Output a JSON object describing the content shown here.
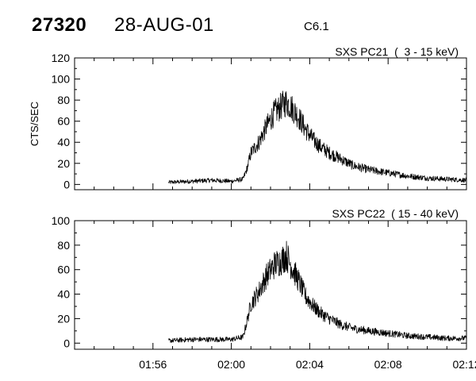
{
  "header": {
    "event_id": "27320",
    "date": "28-AUG-01",
    "flare_class": "C6.1"
  },
  "chart_data": [
    {
      "type": "line",
      "title": "SXS PC21  (  3 - 15 keV)",
      "xlabel": "",
      "ylabel": "CTS/SEC",
      "xlim": [
        "01:52",
        "02:12"
      ],
      "ylim": [
        -5,
        120
      ],
      "yticks": [
        0,
        20,
        40,
        60,
        80,
        100,
        120
      ],
      "grid": false,
      "series": [
        {
          "x": [
            "01:56:48",
            "01:58:00",
            "01:59:00",
            "02:00:00",
            "02:00:36",
            "02:00:48",
            "02:01:00",
            "02:01:24",
            "02:01:48",
            "02:02:12",
            "02:02:36",
            "02:02:48",
            "02:03:00",
            "02:03:24",
            "02:03:48",
            "02:04:12",
            "02:04:36",
            "02:05:00",
            "02:05:36",
            "02:06:12",
            "02:07:00",
            "02:08:00",
            "02:09:00",
            "02:10:00",
            "02:11:00",
            "02:12:00"
          ],
          "values": [
            2,
            3,
            4,
            3,
            5,
            15,
            30,
            40,
            55,
            68,
            75,
            78,
            75,
            65,
            52,
            42,
            35,
            30,
            24,
            18,
            14,
            11,
            8,
            6,
            5,
            4
          ]
        }
      ]
    },
    {
      "type": "line",
      "title": "SXS PC22  ( 15 - 40 keV)",
      "xlabel": "",
      "ylabel": "",
      "xlim": [
        "01:52",
        "02:12"
      ],
      "ylim": [
        -5,
        100
      ],
      "yticks": [
        0,
        20,
        40,
        60,
        80,
        100
      ],
      "xticks": [
        "01:56",
        "02:00",
        "02:04",
        "02:08",
        "02:12"
      ],
      "grid": false,
      "series": [
        {
          "x": [
            "01:56:48",
            "01:58:00",
            "01:59:00",
            "02:00:00",
            "02:00:36",
            "02:00:48",
            "02:01:00",
            "02:01:24",
            "02:01:48",
            "02:02:12",
            "02:02:36",
            "02:02:48",
            "02:03:00",
            "02:03:24",
            "02:03:48",
            "02:04:12",
            "02:04:36",
            "02:05:00",
            "02:05:36",
            "02:06:12",
            "02:07:00",
            "02:08:00",
            "02:09:00",
            "02:10:00",
            "02:11:00",
            "02:12:00"
          ],
          "values": [
            2,
            3,
            3,
            3,
            5,
            18,
            32,
            42,
            55,
            64,
            68,
            72,
            65,
            52,
            38,
            30,
            24,
            20,
            15,
            12,
            10,
            8,
            6,
            5,
            4,
            4
          ]
        }
      ]
    }
  ]
}
